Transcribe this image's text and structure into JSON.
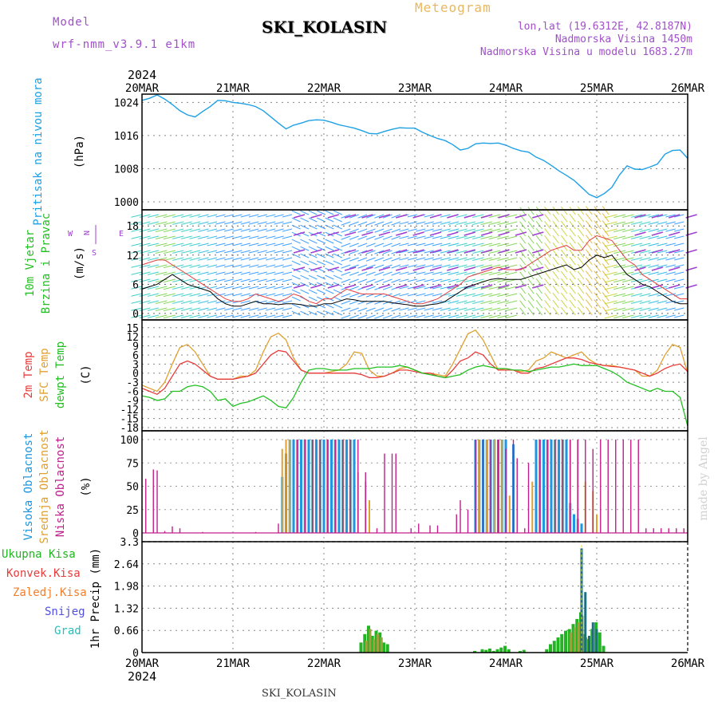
{
  "header": {
    "model_label": "Model",
    "model_name": "wrf-nmm_v3.9.1 e1km",
    "station": "SKI_KOLASIN",
    "product": "Meteogram",
    "lonlat": "lon,lat (19.6312E, 42.8187N)",
    "elevation": "Nadmorska Visina 1450m",
    "model_elevation": "Nadmorska Visina u modelu 1683.27m"
  },
  "footer": {
    "station": "SKI_KOLASIN",
    "credit": "made by Angel"
  },
  "colors": {
    "pressure": "#1ea0e6",
    "temp2m": "#e83c3c",
    "sfc": "#e0a030",
    "dewpt": "#22c022",
    "cloud_high": "#1e96e0",
    "cloud_mid": "#e0a030",
    "cloud_low": "#c0208c",
    "precip_total": "#22b422",
    "precip_conv": "#e83c3c",
    "precip_frz": "#f08030",
    "snow": "#5050e0",
    "grad": "#20c0c0",
    "wind_dir": "#a040d0"
  },
  "chart_data": [
    {
      "panel": "pressure",
      "type": "line",
      "ylabel_lines": [
        "Pritisak na nivou mora"
      ],
      "unit": "(hPa)",
      "x_ticks": [
        "20MAR",
        "21MAR",
        "22MAR",
        "23MAR",
        "24MAR",
        "25MAR",
        "26MAR"
      ],
      "year": "2024",
      "x_range_hours": [
        0,
        144
      ],
      "ylim": [
        1000,
        1026
      ],
      "y_ticks": [
        1000,
        1008,
        1016,
        1024
      ],
      "series": [
        {
          "x": [
            0,
            2,
            4,
            6,
            8,
            10,
            12,
            14,
            16,
            18,
            20,
            22,
            24,
            26,
            28,
            30,
            32,
            34,
            36,
            38,
            40,
            42,
            44,
            46,
            48,
            50,
            52,
            54,
            56,
            58,
            60,
            62,
            64,
            66,
            68,
            70,
            72,
            74,
            76,
            78,
            80,
            82,
            84,
            86,
            88,
            90,
            92,
            94,
            96,
            98,
            100,
            102,
            104,
            106,
            108,
            110,
            112,
            114,
            116,
            118,
            120,
            122,
            124,
            126,
            128,
            130,
            132,
            134,
            136,
            138,
            140,
            142,
            144
          ],
          "values": [
            1024.5,
            1025,
            1025.8,
            1024.8,
            1023.5,
            1022,
            1021,
            1020.5,
            1021.8,
            1023,
            1024.5,
            1024.4,
            1024,
            1023.8,
            1023.5,
            1023,
            1022,
            1020.5,
            1019,
            1017.6,
            1018.5,
            1019,
            1019.6,
            1019.8,
            1019.7,
            1019.2,
            1018.6,
            1018.2,
            1017.8,
            1017.2,
            1016.5,
            1016.4,
            1017,
            1017.5,
            1017.9,
            1017.8,
            1017.8,
            1016.8,
            1016,
            1015.3,
            1014.8,
            1013.8,
            1012.5,
            1012.9,
            1014,
            1014.2,
            1014.1,
            1014.2,
            1013.7,
            1012.9,
            1012.3,
            1012,
            1010.8,
            1010,
            1008.8,
            1007.5,
            1006.4,
            1005.2,
            1003.5,
            1001.8,
            1001,
            1002,
            1003.5,
            1006.5,
            1008.7,
            1007.9,
            1007.8,
            1008.4,
            1009.1,
            1011.5,
            1012.4,
            1012.5,
            1010.5
          ]
        }
      ]
    },
    {
      "panel": "wind",
      "type": "line",
      "ylabel_lines": [
        "10m Vjetar",
        "Brzina i Pravac"
      ],
      "unit": "(m/s)",
      "compass": [
        "N",
        "S",
        "W",
        "E"
      ],
      "ylim": [
        -1,
        20
      ],
      "y_ticks": [
        0,
        6,
        12,
        18
      ],
      "speed": [
        5,
        5.5,
        6,
        7,
        8,
        7,
        6,
        5.5,
        5,
        4.5,
        3,
        2,
        1.5,
        1.5,
        2,
        2.5,
        2,
        2,
        1.8,
        2,
        2,
        1.8,
        1.5,
        1.5,
        2,
        2,
        2.5,
        3,
        2.8,
        2.5,
        2.5,
        2.5,
        2.5,
        2.2,
        2,
        1.8,
        1.5,
        1.5,
        1.8,
        2,
        2.5,
        3.5,
        4.5,
        5.5,
        6,
        6.5,
        7,
        7.2,
        7,
        7,
        7,
        7.5,
        8,
        8.5,
        9,
        9.5,
        10,
        9,
        9.5,
        11,
        12,
        11.5,
        12,
        10,
        8,
        7,
        6,
        5.5,
        4.5,
        3.5,
        2.5,
        2,
        2
      ],
      "gust": [
        10,
        10.5,
        11,
        11,
        10,
        9,
        8,
        7,
        6,
        5,
        4,
        3,
        2.5,
        2.5,
        3,
        4,
        3.5,
        3,
        2.5,
        3,
        4,
        3.5,
        2.5,
        2,
        3,
        3,
        4,
        5,
        4.5,
        4,
        4,
        4,
        4,
        3.5,
        3,
        2.5,
        2,
        2,
        2.5,
        3,
        4,
        5,
        6,
        7.5,
        8,
        8.5,
        9,
        9.5,
        9,
        9,
        9,
        10,
        11,
        12,
        13,
        13.5,
        14,
        13,
        13,
        15,
        16,
        15.5,
        15,
        13,
        11,
        10,
        8,
        7,
        6,
        5,
        4,
        3,
        3
      ]
    },
    {
      "panel": "temperature",
      "type": "line",
      "ylabel_lines": [
        "2m Temp",
        "SFC Temp",
        "dewpt Temp"
      ],
      "unit": "(C)",
      "ylim": [
        -18,
        16
      ],
      "y_ticks": [
        15,
        12,
        9,
        6,
        3,
        0,
        -3,
        -6,
        -9,
        -12,
        -15,
        -18
      ],
      "series": [
        {
          "name": "2m Temp",
          "values": [
            -5,
            -6,
            -7,
            -5,
            -1,
            3,
            4,
            3,
            1,
            -1,
            -2,
            -2,
            -2,
            -1.5,
            -1,
            0,
            3,
            6,
            7.5,
            7,
            4,
            1,
            0,
            0,
            0,
            0,
            0,
            0,
            0,
            -0.5,
            -1.5,
            -1.5,
            -1,
            0,
            1,
            1,
            0.5,
            0,
            0,
            -1,
            -1.5,
            1,
            4,
            5,
            7,
            6,
            3,
            1,
            1,
            1,
            0,
            0,
            1.5,
            2,
            3,
            4,
            5,
            5,
            4.5,
            3.5,
            3,
            2.5,
            2.2,
            2,
            1.5,
            1,
            0,
            -1,
            0,
            1.5,
            2.5,
            3,
            0.5
          ]
        },
        {
          "name": "SFC Temp",
          "values": [
            -4,
            -5,
            -6,
            -3,
            3,
            8.5,
            9.5,
            7,
            3,
            -1,
            -2,
            -2,
            -2,
            -1,
            -1,
            1,
            7,
            12,
            13.2,
            11,
            5,
            1,
            0,
            0,
            0,
            0.5,
            1,
            3,
            7,
            6.5,
            1,
            -1,
            -1,
            0,
            1.5,
            2,
            1,
            0,
            0,
            -0.5,
            -1,
            3,
            8,
            13,
            14.2,
            11,
            6,
            1,
            1.5,
            1,
            0.5,
            1,
            4,
            5,
            7,
            6,
            5,
            6,
            7,
            4.5,
            3,
            2.5,
            2.5,
            2,
            1.5,
            1,
            -1,
            -1,
            1,
            6,
            9.5,
            8.5,
            0
          ]
        },
        {
          "name": "dewpt Temp",
          "values": [
            -7.5,
            -8,
            -9,
            -8.5,
            -6,
            -6,
            -4.5,
            -4,
            -4.5,
            -6,
            -9,
            -8.5,
            -11,
            -10,
            -9.5,
            -8.5,
            -7.5,
            -9,
            -11,
            -11.5,
            -8,
            -3,
            1,
            1.5,
            1.5,
            1,
            1,
            1,
            1.5,
            1.5,
            1.5,
            2,
            2,
            2,
            2.5,
            2,
            1,
            0,
            -0.5,
            -1,
            -1.5,
            -1,
            -0.5,
            1,
            2,
            2.5,
            2,
            1.5,
            1.5,
            1,
            1,
            0.5,
            1,
            1.5,
            2,
            2,
            2.5,
            3,
            2.5,
            2.5,
            2.5,
            1.5,
            0.5,
            -1,
            -3,
            -4,
            -5,
            -6,
            -5,
            -6,
            -6,
            -8,
            -17.5
          ]
        }
      ]
    },
    {
      "panel": "clouds",
      "type": "bar",
      "ylabel_lines": [
        "Visoka Oblacnost",
        "Srednja Oblacnost",
        "Niska Oblacnost"
      ],
      "unit": "(%)",
      "ylim": [
        0,
        100
      ],
      "y_ticks": [
        0,
        25,
        50,
        75,
        100
      ],
      "series": [
        {
          "name": "Visoka Oblacnost",
          "x": [
            37,
            38,
            39,
            40,
            41,
            42,
            43,
            44,
            45,
            46,
            47,
            48,
            49,
            50,
            51,
            52,
            53,
            54,
            55,
            56,
            88,
            89,
            90,
            91,
            92,
            93,
            94,
            95,
            96,
            98,
            104,
            105,
            106,
            107,
            108,
            109,
            110,
            111,
            112,
            113,
            114,
            115,
            116
          ],
          "values": [
            60,
            85,
            100,
            100,
            100,
            100,
            100,
            100,
            100,
            100,
            100,
            100,
            100,
            100,
            100,
            100,
            100,
            100,
            100,
            100,
            100,
            100,
            100,
            100,
            100,
            100,
            100,
            100,
            100,
            95,
            100,
            100,
            100,
            100,
            100,
            100,
            100,
            100,
            100,
            32,
            20,
            15,
            10
          ]
        },
        {
          "name": "Srednja Oblacnost",
          "x": [
            37,
            38,
            39,
            41,
            43,
            45,
            47,
            49,
            51,
            53,
            55,
            57,
            59,
            60,
            89,
            91,
            93,
            95,
            97,
            103,
            105,
            107,
            109,
            111,
            113,
            115,
            117,
            119,
            120
          ],
          "values": [
            90,
            100,
            100,
            100,
            100,
            100,
            100,
            100,
            100,
            100,
            100,
            65,
            55,
            35,
            100,
            100,
            100,
            100,
            40,
            55,
            100,
            100,
            100,
            100,
            100,
            100,
            55,
            45,
            20
          ]
        },
        {
          "name": "Niska Oblacnost",
          "x": [
            1,
            3,
            4,
            6,
            8,
            10,
            16,
            30,
            36,
            41,
            43,
            45,
            47,
            49,
            51,
            53,
            55,
            57,
            59,
            62,
            64,
            66,
            67,
            71,
            73,
            76,
            78,
            83,
            84,
            86,
            88,
            90,
            92,
            94,
            96,
            98,
            99,
            101,
            102,
            105,
            107,
            109,
            111,
            113,
            115,
            117,
            119,
            121,
            123,
            125,
            127,
            129,
            131,
            133,
            135,
            137,
            139,
            141,
            143
          ],
          "values": [
            58,
            68,
            67,
            2,
            7,
            5,
            1,
            1,
            10,
            100,
            100,
            100,
            100,
            100,
            100,
            100,
            100,
            100,
            65,
            5,
            85,
            85,
            85,
            5,
            10,
            8,
            8,
            20,
            35,
            25,
            100,
            100,
            100,
            100,
            90,
            100,
            80,
            5,
            75,
            100,
            100,
            100,
            100,
            100,
            100,
            100,
            90,
            100,
            100,
            100,
            100,
            100,
            100,
            5,
            5,
            5,
            5,
            5,
            5
          ]
        }
      ]
    },
    {
      "panel": "precip",
      "type": "bar",
      "ylabel_lines": [
        "Ukupna Kisa",
        "Konvek.Kisa",
        "Zaledj.Kisa",
        "Snijeg",
        "Grad"
      ],
      "unit": "1hr Precip (mm)",
      "ylim": [
        0,
        3.3
      ],
      "y_ticks": [
        0,
        0.66,
        1.32,
        1.98,
        2.64,
        3.3
      ],
      "series": [
        {
          "name": "Ukupna Kisa",
          "x": [
            58,
            59,
            60,
            61,
            62,
            63,
            64,
            65,
            88,
            90,
            91,
            92,
            93,
            94,
            95,
            96,
            97,
            100,
            101,
            107,
            108,
            109,
            110,
            111,
            112,
            113,
            114,
            115,
            116,
            117,
            118,
            119,
            120,
            121,
            122
          ],
          "values": [
            0.3,
            0.55,
            0.8,
            0.5,
            0.65,
            0.6,
            0.3,
            0.25,
            0.05,
            0.1,
            0.08,
            0.12,
            0.05,
            0.1,
            0.15,
            0.2,
            0.1,
            0.05,
            0.08,
            0.1,
            0.25,
            0.35,
            0.45,
            0.55,
            0.65,
            0.7,
            0.85,
            1.0,
            1.2,
            0.55,
            0.4,
            0.7,
            0.9,
            0.6,
            0.2
          ]
        },
        {
          "name": "Konvek.Kisa",
          "x": [
            59,
            60,
            61,
            62,
            63,
            113,
            114,
            115,
            116,
            117
          ],
          "values": [
            0.35,
            0.7,
            0.4,
            0.55,
            0.45,
            0.6,
            0.75,
            0.9,
            1.1,
            0.45
          ]
        },
        {
          "name": "Snijeg",
          "x": [
            116,
            117,
            118,
            119,
            120
          ],
          "values": [
            3.1,
            1.8,
            0.5,
            0.9,
            0.7
          ]
        }
      ]
    }
  ]
}
